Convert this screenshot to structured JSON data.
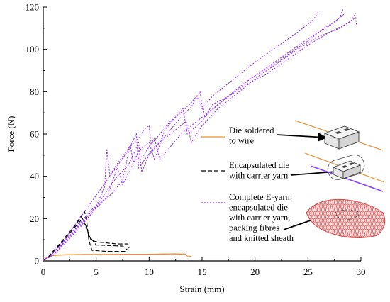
{
  "chart_data": {
    "type": "line",
    "title": "",
    "xlabel": "Strain (mm)",
    "ylabel": "Force (N)",
    "xlim": [
      0,
      30
    ],
    "ylim": [
      0,
      120
    ],
    "xticks": [
      0,
      5,
      10,
      15,
      20,
      25,
      30
    ],
    "yticks": [
      0,
      20,
      40,
      60,
      80,
      100,
      120
    ],
    "xtick_labels": [
      "0",
      "5",
      "10",
      "15",
      "20",
      "25",
      "30"
    ],
    "ytick_labels": [
      "0",
      "20",
      "40",
      "60",
      "80",
      "100",
      "120"
    ],
    "grid": false,
    "legend_placement": "right",
    "series": [
      {
        "name": "Die soldered to wire",
        "legend_lines": [
          "Die soldered",
          "to wire"
        ],
        "color": "#f08c28",
        "style": "solid",
        "curves": [
          [
            [
              0.0,
              0.3
            ],
            [
              0.3,
              1.5
            ],
            [
              0.6,
              2.2
            ],
            [
              1.0,
              2.6
            ],
            [
              2.0,
              2.8
            ],
            [
              4.0,
              3.0
            ],
            [
              6.0,
              3.0
            ],
            [
              8.0,
              3.1
            ],
            [
              10.0,
              3.1
            ],
            [
              12.0,
              3.3
            ],
            [
              13.4,
              3.3
            ],
            [
              13.6,
              2.3
            ],
            [
              14.0,
              2.2
            ]
          ],
          [
            [
              0.0,
              0.3
            ],
            [
              0.4,
              1.8
            ],
            [
              0.8,
              2.5
            ],
            [
              2.0,
              2.9
            ],
            [
              4.0,
              3.1
            ],
            [
              7.0,
              3.1
            ],
            [
              10.0,
              3.2
            ],
            [
              12.5,
              3.4
            ],
            [
              13.2,
              3.0
            ]
          ]
        ]
      },
      {
        "name": "Encapsulated die with carrier yarn",
        "legend_lines": [
          "Encapsulated die",
          "with carrier yarn"
        ],
        "color": "#000000",
        "style": "dashed",
        "curves": [
          [
            [
              0.0,
              0.0
            ],
            [
              0.5,
              2.0
            ],
            [
              1.0,
              5.0
            ],
            [
              2.0,
              10.0
            ],
            [
              3.0,
              16.0
            ],
            [
              3.7,
              20.0
            ],
            [
              4.0,
              17.0
            ],
            [
              4.5,
              10.0
            ],
            [
              5.0,
              9.0
            ],
            [
              7.0,
              8.0
            ],
            [
              8.0,
              8.0
            ],
            [
              8.1,
              6.0
            ]
          ],
          [
            [
              0.0,
              0.0
            ],
            [
              0.6,
              2.5
            ],
            [
              1.2,
              6.0
            ],
            [
              2.2,
              12.0
            ],
            [
              3.2,
              18.0
            ],
            [
              3.6,
              21.0
            ],
            [
              3.9,
              18.0
            ],
            [
              4.3,
              12.0
            ],
            [
              5.0,
              7.5
            ],
            [
              7.5,
              7.0
            ],
            [
              8.0,
              5.0
            ]
          ],
          [
            [
              0.0,
              0.0
            ],
            [
              0.8,
              3.0
            ],
            [
              1.8,
              9.0
            ],
            [
              2.8,
              15.0
            ],
            [
              3.4,
              20.0
            ],
            [
              3.9,
              23.5
            ],
            [
              4.1,
              19.0
            ],
            [
              4.3,
              10.0
            ],
            [
              4.6,
              5.0
            ],
            [
              6.0,
              4.5
            ],
            [
              7.8,
              4.5
            ]
          ]
        ]
      },
      {
        "name": "Complete E-yarn: encapsulated die with carrier yarn, packing fibres and knitted sheath",
        "legend_lines": [
          "Complete E-yarn:",
          "encapsulated die",
          "with carrier yarn,",
          "packing fibres",
          "and knitted sheath"
        ],
        "color": "#9b30ff",
        "style": "dotted",
        "curves": [
          [
            [
              0.0,
              0.0
            ],
            [
              1.0,
              4.0
            ],
            [
              2.0,
              10.0
            ],
            [
              3.0,
              17.0
            ],
            [
              4.0,
              24.0
            ],
            [
              5.0,
              31.0
            ],
            [
              6.0,
              38.0
            ],
            [
              7.0,
              46.0
            ],
            [
              8.0,
              53.0
            ],
            [
              9.0,
              58.0
            ],
            [
              9.5,
              62.0
            ],
            [
              10.0,
              64.0
            ],
            [
              10.2,
              55.0
            ],
            [
              11.0,
              60.0
            ],
            [
              12.0,
              66.0
            ],
            [
              13.0,
              70.0
            ],
            [
              14.0,
              75.0
            ],
            [
              14.5,
              78.0
            ],
            [
              15.0,
              72.0
            ],
            [
              16.0,
              78.0
            ],
            [
              18.0,
              86.0
            ],
            [
              20.0,
              94.0
            ],
            [
              22.0,
              101.0
            ],
            [
              24.0,
              108.0
            ],
            [
              25.5,
              114.0
            ],
            [
              26.0,
              118.0
            ]
          ],
          [
            [
              0.0,
              0.0
            ],
            [
              1.5,
              6.0
            ],
            [
              3.0,
              14.0
            ],
            [
              4.5,
              22.0
            ],
            [
              6.0,
              33.0
            ],
            [
              7.0,
              40.0
            ],
            [
              8.0,
              45.0
            ],
            [
              8.5,
              50.0
            ],
            [
              9.0,
              56.0
            ],
            [
              9.3,
              42.0
            ],
            [
              10.0,
              50.0
            ],
            [
              11.0,
              56.0
            ],
            [
              12.0,
              62.0
            ],
            [
              13.0,
              68.0
            ],
            [
              14.0,
              73.0
            ],
            [
              14.8,
              80.0
            ],
            [
              15.2,
              68.0
            ],
            [
              17.0,
              76.0
            ],
            [
              19.0,
              84.0
            ],
            [
              21.0,
              91.0
            ],
            [
              23.0,
              98.0
            ],
            [
              25.0,
              105.0
            ],
            [
              27.0,
              111.0
            ],
            [
              28.0,
              115.0
            ],
            [
              28.3,
              119.0
            ]
          ],
          [
            [
              0.0,
              0.0
            ],
            [
              1.2,
              5.0
            ],
            [
              2.5,
              12.0
            ],
            [
              4.0,
              20.0
            ],
            [
              5.0,
              26.0
            ],
            [
              5.8,
              35.0
            ],
            [
              6.0,
              53.0
            ],
            [
              6.3,
              40.0
            ],
            [
              7.0,
              45.0
            ],
            [
              8.0,
              52.0
            ],
            [
              8.8,
              60.0
            ],
            [
              9.0,
              44.0
            ],
            [
              10.5,
              54.0
            ],
            [
              12.5,
              62.0
            ],
            [
              13.5,
              66.0
            ],
            [
              14.0,
              56.0
            ],
            [
              15.0,
              64.0
            ],
            [
              16.5,
              72.0
            ],
            [
              18.5,
              80.0
            ],
            [
              20.5,
              88.0
            ],
            [
              22.0,
              93.0
            ],
            [
              24.0,
              100.0
            ],
            [
              26.0,
              106.0
            ],
            [
              28.0,
              110.0
            ],
            [
              29.5,
              115.0
            ],
            [
              29.6,
              111.0
            ]
          ],
          [
            [
              0.0,
              0.0
            ],
            [
              1.0,
              3.0
            ],
            [
              2.0,
              8.0
            ],
            [
              3.5,
              16.0
            ],
            [
              5.0,
              25.0
            ],
            [
              6.5,
              32.0
            ],
            [
              7.5,
              38.0
            ],
            [
              8.2,
              55.0
            ],
            [
              8.5,
              47.0
            ],
            [
              9.5,
              50.0
            ],
            [
              10.5,
              58.0
            ],
            [
              11.0,
              48.0
            ],
            [
              12.0,
              54.0
            ],
            [
              13.0,
              60.0
            ],
            [
              14.0,
              64.0
            ],
            [
              15.5,
              70.0
            ],
            [
              17.0,
              76.0
            ],
            [
              19.0,
              83.0
            ],
            [
              21.0,
              88.0
            ],
            [
              23.0,
              95.0
            ],
            [
              25.0,
              102.0
            ],
            [
              27.0,
              108.0
            ],
            [
              29.0,
              113.0
            ],
            [
              29.5,
              117.0
            ]
          ],
          [
            [
              0.0,
              0.0
            ],
            [
              1.5,
              6.0
            ],
            [
              3.0,
              15.0
            ],
            [
              4.5,
              24.0
            ],
            [
              6.0,
              30.0
            ],
            [
              7.0,
              44.0
            ],
            [
              7.5,
              36.0
            ],
            [
              8.5,
              46.0
            ],
            [
              9.0,
              52.0
            ],
            [
              10.0,
              56.0
            ],
            [
              10.5,
              48.0
            ],
            [
              11.5,
              62.0
            ],
            [
              12.5,
              68.0
            ],
            [
              13.2,
              72.0
            ],
            [
              13.6,
              60.0
            ],
            [
              15.0,
              66.0
            ],
            [
              16.0,
              74.0
            ],
            [
              17.5,
              78.0
            ],
            [
              19.5,
              86.0
            ],
            [
              21.5,
              92.0
            ],
            [
              23.5,
              99.0
            ],
            [
              25.0,
              104.0
            ],
            [
              26.5,
              110.0
            ],
            [
              27.5,
              113.0
            ],
            [
              28.5,
              117.0
            ]
          ]
        ]
      }
    ]
  },
  "illustrations": {
    "die_icon": "die-schematic-icon",
    "encapsulated_icon": "encapsulated-die-schematic-icon",
    "eyarn_icon": "knitted-e-yarn-icon"
  }
}
